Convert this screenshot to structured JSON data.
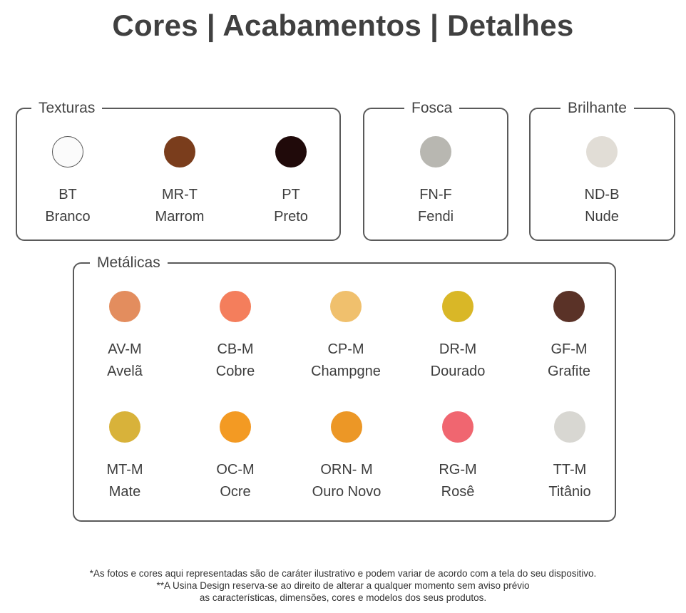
{
  "title": "Cores | Acabamentos | Detalhes",
  "groups": {
    "texturas": {
      "label": "Texturas",
      "items": [
        {
          "code": "BT",
          "name": "Branco",
          "color": "#fbfbfb",
          "border": "#555555"
        },
        {
          "code": "MR-T",
          "name": "Marrom",
          "color": "#7a3d1c"
        },
        {
          "code": "PT",
          "name": "Preto",
          "color": "#200a0a"
        }
      ]
    },
    "fosca": {
      "label": "Fosca",
      "items": [
        {
          "code": "FN-F",
          "name": "Fendi",
          "color": "#b8b7b1"
        }
      ]
    },
    "brilhante": {
      "label": "Brilhante",
      "items": [
        {
          "code": "ND-B",
          "name": "Nude",
          "color": "#e1ddd6"
        }
      ]
    },
    "metalicas": {
      "label": "Metálicas",
      "items": [
        {
          "code": "AV-M",
          "name": "Avelã",
          "color": "#e38d5e"
        },
        {
          "code": "CB-M",
          "name": "Cobre",
          "color": "#f47e5c"
        },
        {
          "code": "CP-M",
          "name": "Champgne",
          "color": "#f0c06d"
        },
        {
          "code": "DR-M",
          "name": "Dourado",
          "color": "#d9b727"
        },
        {
          "code": "GF-M",
          "name": "Grafite",
          "color": "#5a3227"
        },
        {
          "code": "MT-M",
          "name": "Mate",
          "color": "#d8b23a"
        },
        {
          "code": "OC-M",
          "name": "Ocre",
          "color": "#f39a23"
        },
        {
          "code": "ORN- M",
          "name": "Ouro Novo",
          "color": "#ec9726"
        },
        {
          "code": "RG-M",
          "name": "Rosê",
          "color": "#f06670"
        },
        {
          "code": "TT-M",
          "name": "Titânio",
          "color": "#d8d7d2"
        }
      ]
    }
  },
  "footer": {
    "line1": "*As fotos e cores aqui representadas são de caráter ilustrativo e podem variar de acordo com a tela do seu dispositivo.",
    "line2": "**A Usina Design reserva-se ao direito de alterar a qualquer momento sem aviso prévio",
    "line3": "as características, dimensões, cores e modelos dos seus produtos."
  }
}
